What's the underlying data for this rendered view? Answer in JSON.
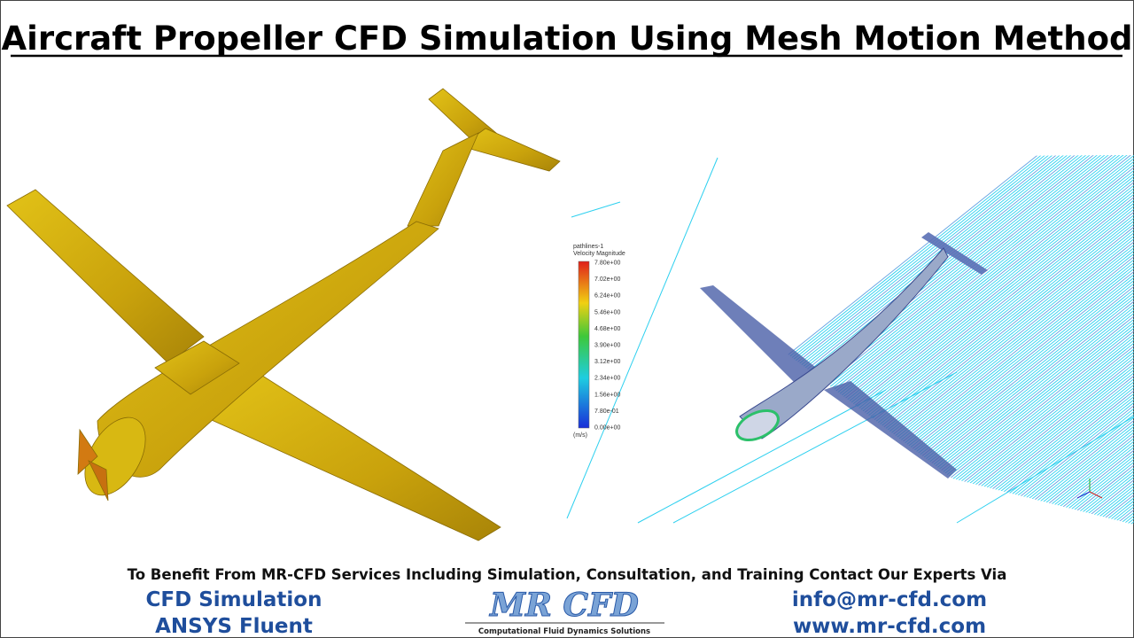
{
  "header": {
    "title": "Aircraft Propeller CFD Simulation Using Mesh Motion Method"
  },
  "legend": {
    "title": "pathlines-1",
    "quantity": "Velocity Magnitude",
    "labels": [
      "7.80e+00",
      "7.02e+00",
      "6.24e+00",
      "5.46e+00",
      "4.68e+00",
      "3.90e+00",
      "3.12e+00",
      "2.34e+00",
      "1.56e+00",
      "7.80e-01",
      "0.00e+00"
    ],
    "unit": "(m/s)"
  },
  "footer": {
    "banner": "To Benefit From MR-CFD Services Including Simulation, Consultation, and Training Contact Our Experts Via",
    "links": [
      "CFD Simulation",
      "ANSYS Fluent"
    ],
    "logo": "MR CFD",
    "logo_tagline": "Computational Fluid Dynamics Solutions",
    "contacts": [
      "info@mr-cfd.com",
      "www.mr-cfd.com"
    ]
  }
}
